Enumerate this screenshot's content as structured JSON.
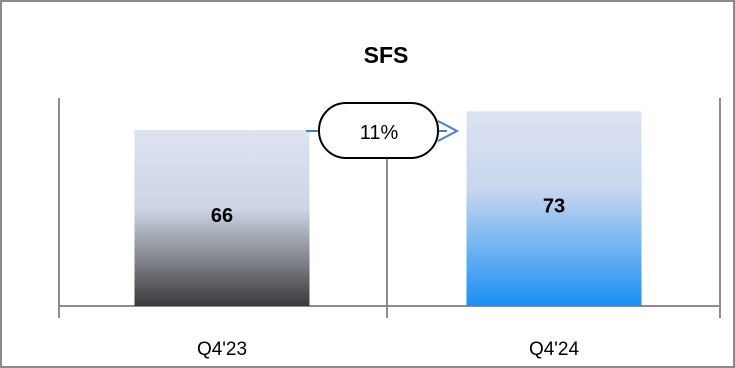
{
  "chart_data": {
    "type": "bar",
    "title": "SFS",
    "categories": [
      "Q4'23",
      "Q4'24"
    ],
    "values": [
      66,
      73
    ],
    "data_labels": [
      "66",
      "73"
    ],
    "growth_annotation": "11%",
    "xlabel": "",
    "ylabel": "",
    "ylim": [
      0,
      78
    ],
    "grid": false,
    "legend": "none",
    "colors": {
      "bar_top": "#dde3f1",
      "bar1_bottom": "#3a3a3a",
      "bar2_bottom": "#1a90f5",
      "axis": "#8c8c8c",
      "arrow": "#4a7fc0",
      "frame": "#8a8a8a"
    }
  }
}
